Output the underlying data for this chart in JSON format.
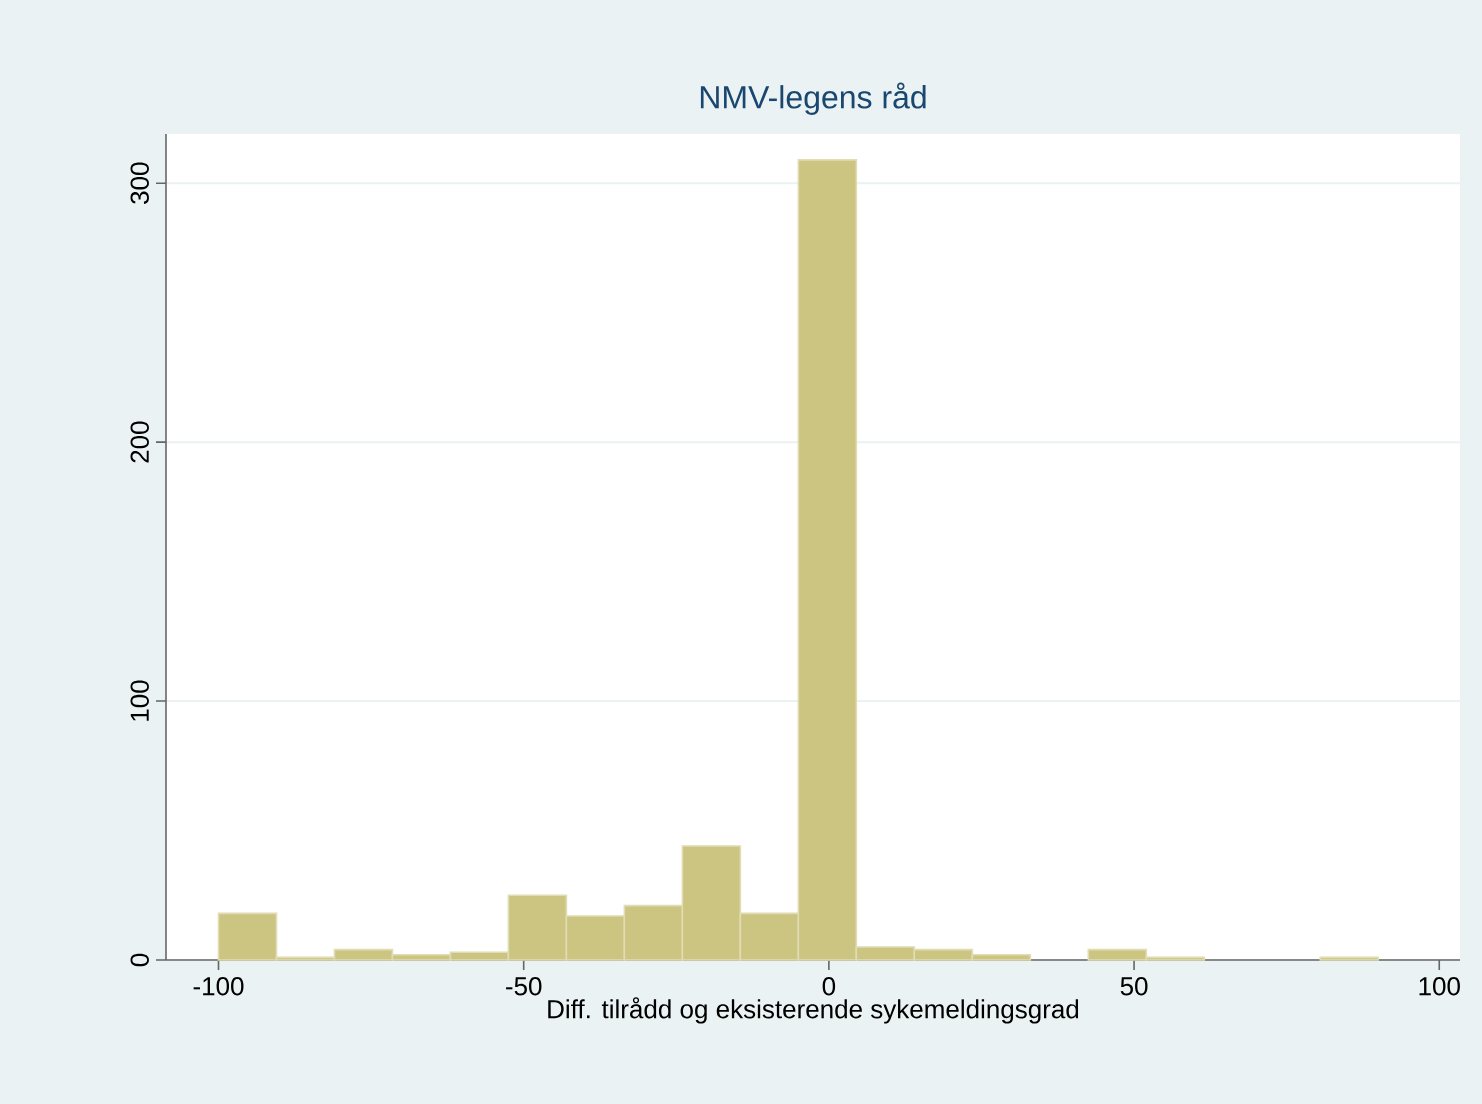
{
  "chart_data": {
    "type": "histogram",
    "title": "NMV-legens råd",
    "xlabel": "Diff. tilrådd og eksisterende sykemeldingsgrad",
    "bins": [
      -100,
      -90.5,
      -81,
      -71.5,
      -62,
      -52.5,
      -43,
      -33.5,
      -24,
      -14.5,
      -5,
      4.5,
      14,
      23.5,
      33,
      42.5,
      52,
      61.5,
      71,
      80.5,
      90
    ],
    "values": [
      18,
      1,
      4,
      2,
      3,
      25,
      17,
      21,
      44,
      18,
      309,
      5,
      4,
      2,
      0,
      4,
      1,
      0,
      0,
      1
    ],
    "color": "#ccc481",
    "xlim": [
      -108.6,
      103.4
    ],
    "ylim": [
      0,
      319
    ],
    "xticks": [
      -100,
      -50,
      0,
      50,
      100
    ],
    "yticks": [
      0,
      100,
      200,
      300
    ],
    "grid": "y"
  }
}
